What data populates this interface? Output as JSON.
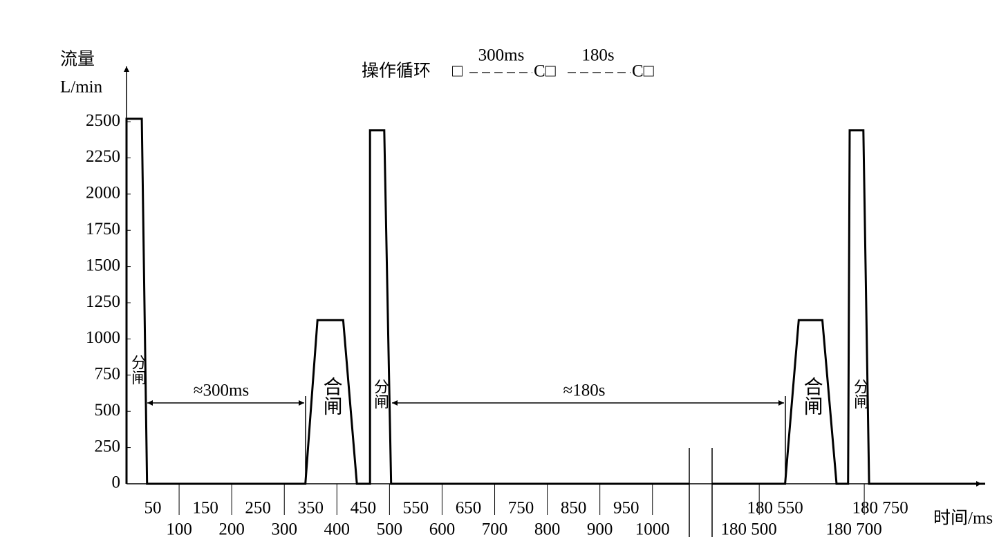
{
  "chart_data": {
    "type": "line",
    "title": "操作循环",
    "cycle_symbols": [
      "□",
      "C□",
      "C□"
    ],
    "cycle_labels": [
      "300ms",
      "180s"
    ],
    "ylabel": [
      "流量",
      "L/min"
    ],
    "xlabel": "时间/ms",
    "ylim": [
      0,
      2870
    ],
    "yticks": [
      0,
      250,
      500,
      750,
      1000,
      1250,
      1500,
      1750,
      2000,
      2250,
      2500
    ],
    "x_segments": [
      {
        "xlim": [
          0,
          1070
        ],
        "xticks": [
          50,
          100,
          150,
          200,
          250,
          300,
          350,
          400,
          450,
          500,
          550,
          600,
          650,
          700,
          750,
          800,
          850,
          900,
          950,
          1000
        ]
      },
      {
        "xlim": [
          180430,
          180950
        ],
        "xticks": [
          {
            "value": 180500,
            "label": "180 500"
          },
          {
            "value": 180550,
            "label": "180 550"
          },
          {
            "value": 180700,
            "label": "180 700"
          },
          {
            "value": 180750,
            "label": "180 750"
          }
        ]
      }
    ],
    "series": [
      {
        "segment": 0,
        "color": "#000000",
        "x": [
          0,
          0,
          29,
          39,
          340,
          363,
          412,
          438,
          463,
          463,
          490,
          503,
          1070
        ],
        "values": [
          0,
          2520,
          2520,
          0,
          0,
          1130,
          1130,
          0,
          0,
          2440,
          2440,
          0,
          0
        ]
      },
      {
        "segment": 1,
        "color": "#000000",
        "x": [
          180430,
          180569,
          180595,
          180640,
          180667,
          180689,
          180692,
          180718,
          180729,
          180950
        ],
        "values": [
          0,
          0,
          1130,
          1130,
          0,
          0,
          2440,
          2440,
          0,
          0
        ]
      }
    ],
    "annotations": [
      {
        "text": "分闸"
      },
      {
        "text": "≈300ms"
      },
      {
        "text": "合闸"
      },
      {
        "text": "分闸"
      },
      {
        "text": "≈180s"
      },
      {
        "text": "合闸"
      },
      {
        "text": "分闸"
      }
    ]
  }
}
